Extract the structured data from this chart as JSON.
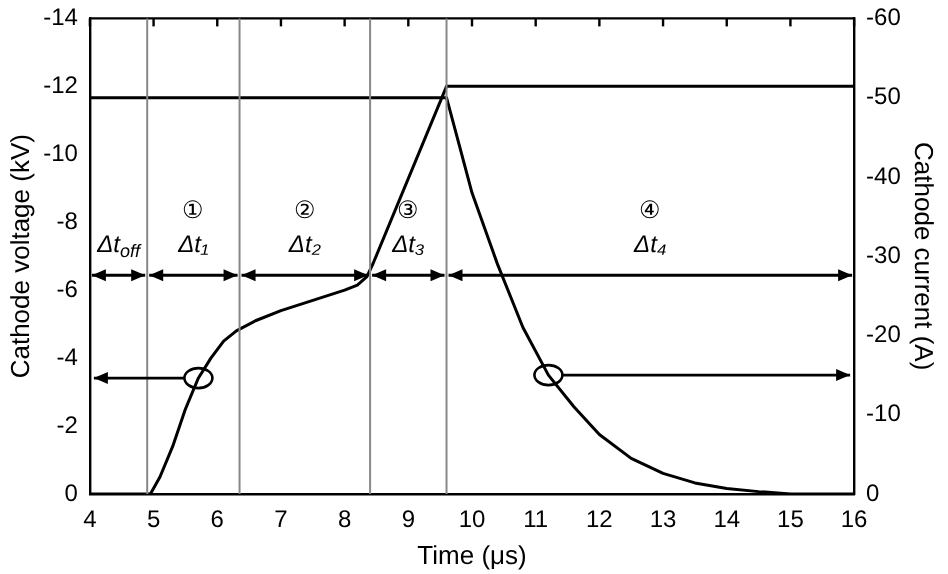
{
  "chart_data": {
    "type": "line",
    "xlabel": "Time (μs)",
    "ylabel": "Cathode voltage (kV)",
    "y2label": "Cathode current (A)",
    "xlim": [
      4,
      16
    ],
    "xticks": [
      4,
      5,
      6,
      7,
      8,
      9,
      10,
      11,
      12,
      13,
      14,
      15,
      16
    ],
    "ylim": [
      0,
      -14
    ],
    "yticks": [
      0,
      -2,
      -4,
      -6,
      -8,
      -10,
      -12,
      -14
    ],
    "y2lim": [
      0,
      -60
    ],
    "y2ticks": [
      0,
      -10,
      -20,
      -30,
      -40,
      -50,
      -60
    ],
    "grid": false,
    "legend": false,
    "marker": "none",
    "line_style": "solid",
    "series": [
      {
        "color": "#000000",
        "x": [
          4,
          4.95,
          5.1,
          5.3,
          5.5,
          5.7,
          5.9,
          6.1,
          6.3,
          6.6,
          7,
          7.5,
          8,
          8.2,
          8.35,
          8.45,
          9.6,
          16
        ],
        "values": [
          0,
          0,
          -0.5,
          -1.4,
          -2.5,
          -3.4,
          -4.0,
          -4.5,
          -4.8,
          -5.1,
          -5.4,
          -5.7,
          -6.0,
          -6.15,
          -6.4,
          -6.8,
          -12,
          -12
        ]
      },
      {
        "color": "#000000",
        "axis": "y2",
        "x": [
          4,
          9.6,
          9.8,
          10,
          10.4,
          10.8,
          11.2,
          11.6,
          12,
          12.5,
          13,
          13.5,
          14,
          14.5,
          15,
          16
        ],
        "values": [
          -50,
          -50,
          -44,
          -38,
          -29,
          -21,
          -15,
          -11,
          -7.5,
          -4.5,
          -2.6,
          -1.4,
          -0.7,
          -0.3,
          0,
          0
        ]
      }
    ],
    "ref_lines": [
      {
        "axis": "x",
        "value": 4.9,
        "color": "#888888"
      },
      {
        "axis": "x",
        "value": 6.35,
        "color": "#888888"
      },
      {
        "axis": "x",
        "value": 8.4,
        "color": "#888888"
      },
      {
        "axis": "x",
        "value": 9.6,
        "color": "#888888"
      }
    ],
    "annotations": [
      "Δt$_{off}$",
      "①\nΔt₁",
      "②\nΔt₂",
      "③\nΔt₃",
      "④\nΔt₄"
    ]
  }
}
